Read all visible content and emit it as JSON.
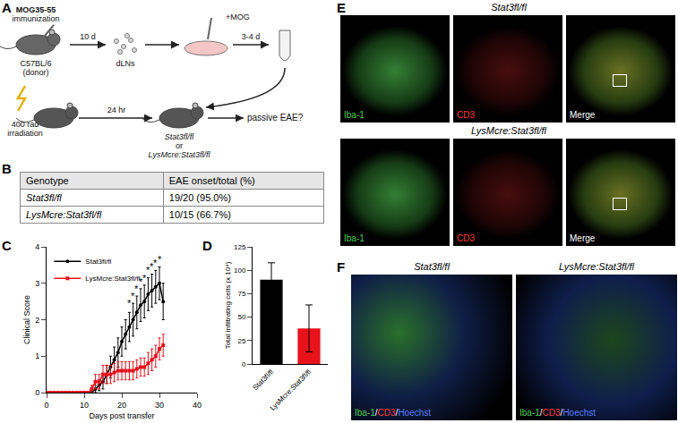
{
  "panel_labels": [
    "A",
    "B",
    "C",
    "D",
    "E",
    "F"
  ],
  "schematic": {
    "immunization": [
      "MOG35-55",
      "immunization"
    ],
    "donor": [
      "C57BL/6",
      "(donor)"
    ],
    "step1": "10 d",
    "cells": "dLNs",
    "step2": "+MOG",
    "step3": "3-4 d",
    "irradiation": [
      "400 rad",
      "irradiation"
    ],
    "step4": "24 hr",
    "recipients": [
      "Stat3fl/fl",
      "or",
      "LysMcre:Stat3fl/fl"
    ],
    "outcome": "passive EAE?"
  },
  "table": {
    "header": [
      "Genotype",
      "EAE onset/total (%)"
    ],
    "rows": [
      [
        "Stat3fl/fl",
        "19/20 (95.0%)"
      ],
      [
        "LysMcre:Stat3fl/fl",
        "10/15 (66.7%)"
      ]
    ]
  },
  "chart_data": [
    {
      "type": "line",
      "x": [
        0,
        1,
        2,
        3,
        4,
        5,
        6,
        7,
        8,
        9,
        10,
        11,
        12,
        13,
        14,
        15,
        16,
        17,
        18,
        19,
        20,
        21,
        22,
        23,
        24,
        25,
        26,
        27,
        28,
        29,
        30,
        31
      ],
      "x_label": "Days post transfer",
      "y_label": "Clinical Score",
      "xlim": [
        0,
        40
      ],
      "xticks": [
        0,
        10,
        20,
        30,
        40
      ],
      "ylim": [
        0,
        4
      ],
      "yticks": [
        0,
        1,
        2,
        3,
        4
      ],
      "grid": false,
      "legend": "upper left",
      "series": [
        {
          "name": "Stat3fl/fl",
          "color": "#000000",
          "marker": "circle",
          "values": [
            0,
            0,
            0,
            0,
            0,
            0,
            0,
            0,
            0,
            0,
            0,
            0,
            0,
            0.1,
            0.2,
            0.3,
            0.5,
            0.7,
            0.9,
            1.1,
            1.4,
            1.6,
            1.8,
            2.0,
            2.2,
            2.4,
            2.5,
            2.7,
            2.8,
            2.9,
            3.0,
            2.5
          ],
          "errors": [
            0,
            0,
            0,
            0,
            0,
            0,
            0,
            0,
            0,
            0,
            0,
            0,
            0,
            0.1,
            0.15,
            0.2,
            0.25,
            0.3,
            0.35,
            0.4,
            0.4,
            0.4,
            0.4,
            0.45,
            0.45,
            0.45,
            0.45,
            0.45,
            0.45,
            0.45,
            0.45,
            0.5
          ]
        },
        {
          "name": "LysMcre:Stat3fl/fl",
          "color": "#e8121b",
          "marker": "square",
          "values": [
            0,
            0,
            0,
            0,
            0,
            0,
            0,
            0,
            0,
            0,
            0,
            0,
            0.1,
            0.3,
            0.3,
            0.5,
            0.5,
            0.5,
            0.55,
            0.6,
            0.6,
            0.6,
            0.6,
            0.6,
            0.65,
            0.7,
            0.7,
            0.8,
            0.9,
            1.0,
            1.2,
            1.3
          ],
          "errors": [
            0,
            0,
            0,
            0,
            0,
            0,
            0,
            0,
            0,
            0,
            0,
            0,
            0.1,
            0.2,
            0.2,
            0.25,
            0.25,
            0.25,
            0.25,
            0.25,
            0.25,
            0.25,
            0.25,
            0.25,
            0.25,
            0.25,
            0.25,
            0.3,
            0.3,
            0.3,
            0.3,
            0.3
          ]
        }
      ],
      "annotations": [
        {
          "x": 22,
          "y": 2.45,
          "text": "*"
        },
        {
          "x": 23,
          "y": 2.65,
          "text": "*"
        },
        {
          "x": 24,
          "y": 2.85,
          "text": "*"
        },
        {
          "x": 25,
          "y": 3.05,
          "text": "*"
        },
        {
          "x": 26,
          "y": 3.15,
          "text": "*"
        },
        {
          "x": 27,
          "y": 3.35,
          "text": "*"
        },
        {
          "x": 28,
          "y": 3.45,
          "text": "*"
        },
        {
          "x": 29,
          "y": 3.55,
          "text": "*"
        },
        {
          "x": 30,
          "y": 3.65,
          "text": "*"
        }
      ]
    },
    {
      "type": "bar",
      "categories": [
        "Stat3fl/fl",
        "LysMcre:Stat3fl/fl"
      ],
      "values": [
        90,
        38
      ],
      "errors": [
        18,
        25
      ],
      "colors": [
        "#000000",
        "#e8121b"
      ],
      "y_label": "Total infiltrating cells (x 10⁴)",
      "ylim": [
        0,
        125
      ],
      "yticks": [
        0,
        25,
        50,
        75,
        100,
        125
      ],
      "grid": false
    }
  ],
  "images": {
    "E": {
      "genotypes": [
        "Stat3fl/fl",
        "LysMcre:Stat3fl/fl"
      ],
      "channels": [
        {
          "text": "Iba-1",
          "color": "#4fd14f"
        },
        {
          "text": "CD3",
          "color": "#ff3b3b"
        },
        {
          "text": "Merge",
          "color": "#ffffff"
        }
      ]
    },
    "F": {
      "genotypes": [
        "Stat3fl/fl",
        "LysMcre:Stat3fl/fl"
      ],
      "stain_parts": [
        {
          "text": "Iba-1",
          "color": "#4fd14f"
        },
        {
          "text": "/",
          "color": "#ffffff"
        },
        {
          "text": "CD3",
          "color": "#ff3b3b"
        },
        {
          "text": "/",
          "color": "#ffffff"
        },
        {
          "text": "Hoechst",
          "color": "#5a7dff"
        }
      ]
    }
  }
}
